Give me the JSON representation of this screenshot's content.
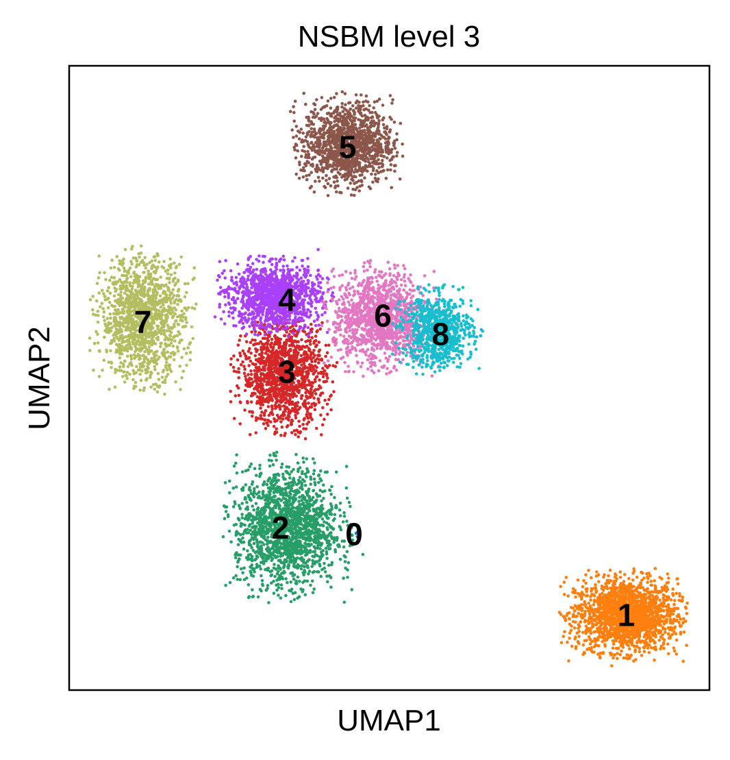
{
  "chart_data": {
    "type": "scatter",
    "title": "NSBM level 3",
    "xlabel": "UMAP1",
    "ylabel": "UMAP2",
    "xlim": [
      0,
      100
    ],
    "ylim": [
      0,
      100
    ],
    "grid": false,
    "ticks": false,
    "legend": "on data",
    "series": [
      {
        "name": "0",
        "color": "#1f77b4",
        "center": [
          44.5,
          25.0
        ],
        "spread": [
          1.8,
          1.5
        ],
        "points": 6
      },
      {
        "name": "1",
        "color": "#ff7f0e",
        "center": [
          87.0,
          12.0
        ],
        "spread": [
          5.5,
          4.0
        ],
        "points": 1800
      },
      {
        "name": "2",
        "color": "#279e68",
        "center": [
          34.0,
          26.0
        ],
        "spread": [
          5.5,
          6.5
        ],
        "points": 1700
      },
      {
        "name": "3",
        "color": "#d62728",
        "center": [
          33.5,
          50.5
        ],
        "spread": [
          4.5,
          5.5
        ],
        "points": 1300
      },
      {
        "name": "4",
        "color": "#aa40fc",
        "center": [
          32.0,
          63.0
        ],
        "spread": [
          5.0,
          3.5
        ],
        "points": 1300
      },
      {
        "name": "5",
        "color": "#8c564b",
        "center": [
          43.5,
          87.5
        ],
        "spread": [
          4.8,
          4.5
        ],
        "points": 1300
      },
      {
        "name": "6",
        "color": "#e377c2",
        "center": [
          48.5,
          59.5
        ],
        "spread": [
          5.0,
          5.0
        ],
        "points": 1300
      },
      {
        "name": "7",
        "color": "#b5bd61",
        "center": [
          11.5,
          59.5
        ],
        "spread": [
          4.5,
          6.5
        ],
        "points": 1300
      },
      {
        "name": "8",
        "color": "#17becf",
        "center": [
          57.5,
          57.5
        ],
        "spread": [
          3.8,
          4.0
        ],
        "points": 800
      }
    ],
    "labels": [
      {
        "text": "0",
        "x": 44.5,
        "y": 25.0
      },
      {
        "text": "1",
        "x": 87.0,
        "y": 12.0
      },
      {
        "text": "2",
        "x": 33.0,
        "y": 26.0
      },
      {
        "text": "3",
        "x": 34.0,
        "y": 51.0
      },
      {
        "text": "4",
        "x": 34.0,
        "y": 62.5
      },
      {
        "text": "5",
        "x": 43.5,
        "y": 87.0
      },
      {
        "text": "6",
        "x": 49.0,
        "y": 60.0
      },
      {
        "text": "7",
        "x": 11.5,
        "y": 59.0
      },
      {
        "text": "8",
        "x": 58.0,
        "y": 57.0
      }
    ]
  }
}
